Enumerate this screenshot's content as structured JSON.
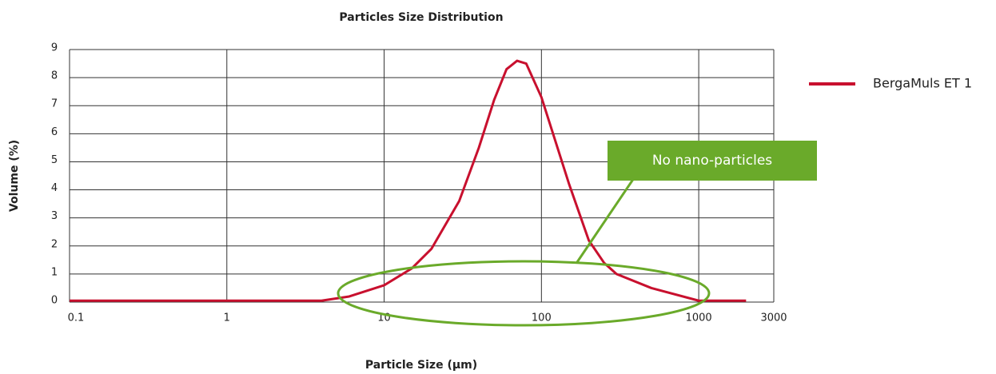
{
  "chart_data": {
    "type": "line",
    "title": "Particles Size Distribution",
    "xlabel": "Particle Size (µm)",
    "ylabel": "Volume (%)",
    "x": [
      0.1,
      4,
      6,
      10,
      15,
      20,
      30,
      40,
      50,
      60,
      70,
      80,
      100,
      150,
      200,
      250,
      300,
      500,
      1000,
      2000
    ],
    "series": [
      {
        "name": "BergaMuls ET 1",
        "color": "#c8102e",
        "values": [
          0.05,
          0.05,
          0.2,
          0.6,
          1.2,
          1.9,
          3.6,
          5.5,
          7.2,
          8.3,
          8.6,
          8.5,
          7.3,
          4.2,
          2.2,
          1.4,
          1.0,
          0.5,
          0.05,
          0.05
        ]
      }
    ],
    "xscale": "log",
    "xlim": [
      0.1,
      3000
    ],
    "xticks": [
      0.1,
      1,
      10,
      100,
      1000,
      3000
    ],
    "ylim": [
      0,
      9
    ],
    "yticks": [
      0,
      1,
      2,
      3,
      4,
      5,
      6,
      7,
      8,
      9
    ],
    "grid": true,
    "legend": "right",
    "annotation": "No nano-particles",
    "annotation_color": "#6aaa2a"
  }
}
